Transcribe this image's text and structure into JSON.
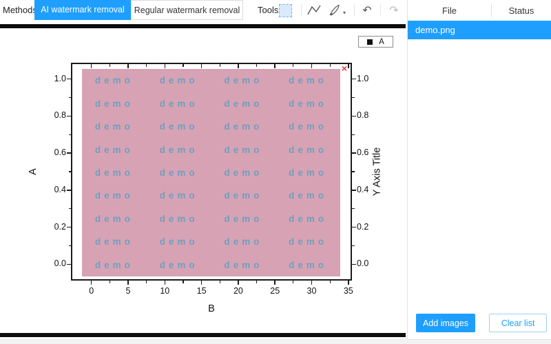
{
  "toolbar": {
    "methods_label": "Methods:",
    "ai_button_label": "AI watermark removal",
    "regular_button_label": "Regular watermark removal",
    "tools_label": "Tools",
    "undo_glyph": "↶",
    "redo_glyph": "↷",
    "brush_caret_glyph": "▾"
  },
  "file_panel": {
    "file_header": "File",
    "status_header": "Status",
    "files": [
      {
        "name": "demo.png",
        "status": ""
      }
    ],
    "add_images_label": "Add images",
    "clear_list_label": "Clear list"
  },
  "colors": {
    "accent_blue": "#1E9FFF",
    "selection_pink": "#D7A3B4",
    "watermark_text_blue": "#5E9EC0",
    "close_x_red": "#E03E3E",
    "axis_black": "#1A1A1A"
  },
  "chart_data": {
    "type": "scatter",
    "title": "",
    "xlabel": "B",
    "ylabel_left": "A",
    "ylabel_right": "Y Axis Title",
    "legend": {
      "position": "top-right-outside",
      "entries": [
        {
          "marker": "filled-square",
          "label": "A"
        }
      ]
    },
    "x_ticks": [
      0,
      5,
      10,
      15,
      20,
      25,
      30,
      35
    ],
    "y_ticks": [
      "0.0",
      "0.2",
      "0.4",
      "0.6",
      "0.8",
      "1.0"
    ],
    "xlim": [
      -2.6,
      35.3
    ],
    "ylim": [
      -0.081,
      1.081
    ],
    "minor_ticks": true,
    "grid": false,
    "series": [
      {
        "name": "A",
        "marker": "filled-square",
        "points": []
      }
    ],
    "watermark_grid": {
      "text": "demo",
      "rows": 9,
      "cols": 4
    },
    "selection_overlay": {
      "close_glyph": "×"
    }
  }
}
